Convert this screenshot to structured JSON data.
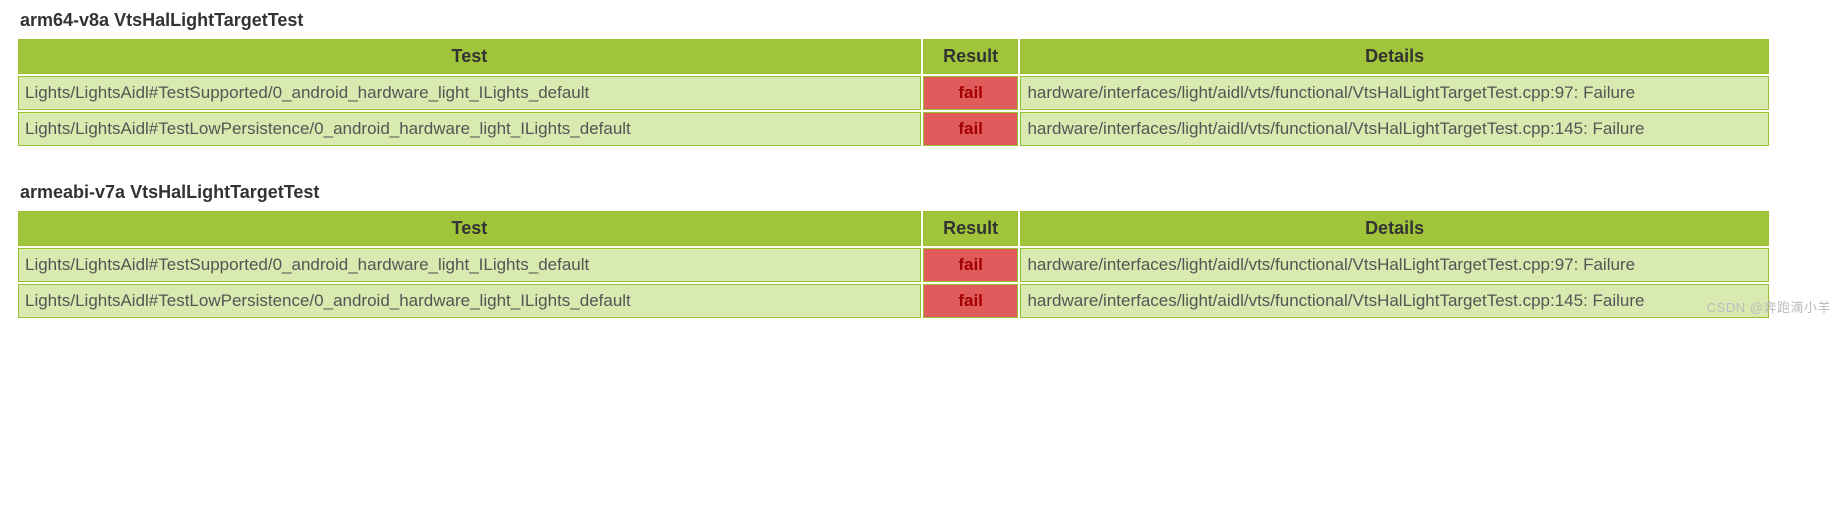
{
  "colors": {
    "header_bg": "#a0c43a",
    "cell_bg": "#d8eab0",
    "fail_bg": "#e05c5c",
    "fail_text": "#a40000",
    "border": "#97c22d"
  },
  "columns": {
    "test": "Test",
    "result": "Result",
    "details": "Details"
  },
  "sections": [
    {
      "title": "arm64-v8a VtsHalLightTargetTest",
      "rows": [
        {
          "test": "Lights/LightsAidl#TestSupported/0_android_hardware_light_ILights_default",
          "result": "fail",
          "details": "hardware/interfaces/light/aidl/vts/functional/VtsHalLightTargetTest.cpp:97: Failure"
        },
        {
          "test": "Lights/LightsAidl#TestLowPersistence/0_android_hardware_light_ILights_default",
          "result": "fail",
          "details": "hardware/interfaces/light/aidl/vts/functional/VtsHalLightTargetTest.cpp:145: Failure"
        }
      ]
    },
    {
      "title": "armeabi-v7a VtsHalLightTargetTest",
      "rows": [
        {
          "test": "Lights/LightsAidl#TestSupported/0_android_hardware_light_ILights_default",
          "result": "fail",
          "details": "hardware/interfaces/light/aidl/vts/functional/VtsHalLightTargetTest.cpp:97: Failure"
        },
        {
          "test": "Lights/LightsAidl#TestLowPersistence/0_android_hardware_light_ILights_default",
          "result": "fail",
          "details": "hardware/interfaces/light/aidl/vts/functional/VtsHalLightTargetTest.cpp:145: Failure"
        }
      ]
    }
  ],
  "watermark": "CSDN @奔跑滴小羊"
}
